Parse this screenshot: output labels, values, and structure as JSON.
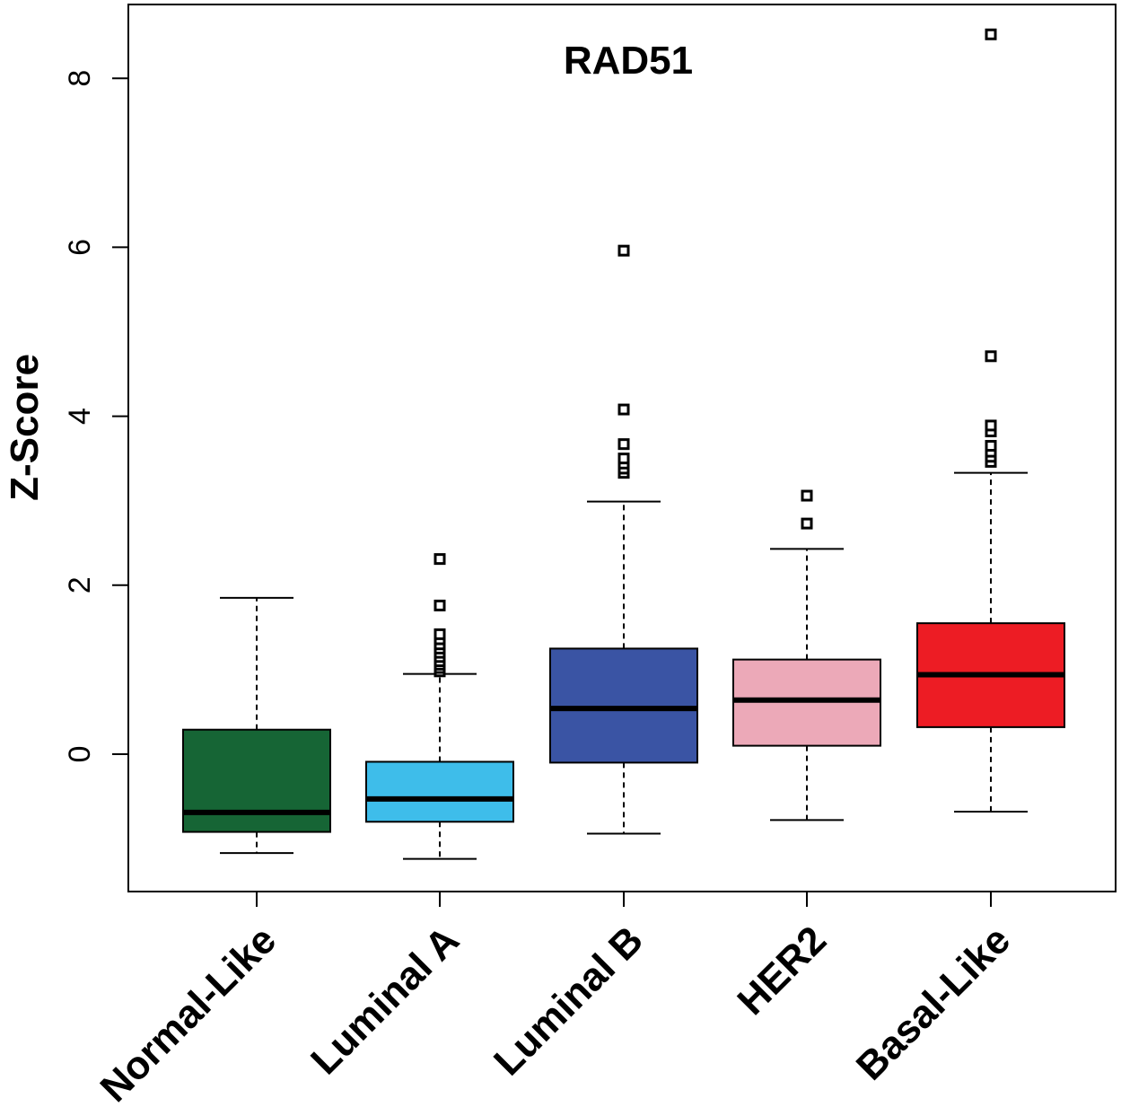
{
  "chart_data": {
    "type": "box",
    "title": "RAD51",
    "xlabel": "",
    "ylabel": "Z-Score",
    "ylim": [
      -1.62,
      8.9
    ],
    "yticks": [
      0,
      2,
      4,
      6,
      8
    ],
    "categories": [
      "Normal-Like",
      "Luminal A",
      "Luminal B",
      "HER2",
      "Basal-Like"
    ],
    "boxes": [
      {
        "category": "Normal-Like",
        "color": "#166535",
        "whisker_low": -1.17,
        "q1": -0.92,
        "median": -0.69,
        "q3": 0.29,
        "whisker_high": 1.85,
        "outliers": []
      },
      {
        "category": "Luminal A",
        "color": "#3EBDEA",
        "whisker_low": -1.24,
        "q1": -0.8,
        "median": -0.53,
        "q3": -0.09,
        "whisker_high": 0.95,
        "outliers": [
          0.98,
          1.02,
          1.06,
          1.1,
          1.15,
          1.2,
          1.25,
          1.3,
          1.36,
          1.42,
          1.76,
          2.31
        ]
      },
      {
        "category": "Luminal B",
        "color": "#3A54A4",
        "whisker_low": -0.94,
        "q1": -0.1,
        "median": 0.54,
        "q3": 1.25,
        "whisker_high": 2.99,
        "outliers": [
          3.33,
          3.38,
          3.44,
          3.5,
          3.67,
          4.08,
          5.96
        ]
      },
      {
        "category": "HER2",
        "color": "#ECA9B8",
        "whisker_low": -0.78,
        "q1": 0.1,
        "median": 0.64,
        "q3": 1.12,
        "whisker_high": 2.43,
        "outliers": [
          2.73,
          3.06
        ]
      },
      {
        "category": "Basal-Like",
        "color": "#ED1C24",
        "whisker_low": -0.68,
        "q1": 0.32,
        "median": 0.94,
        "q3": 1.55,
        "whisker_high": 3.33,
        "outliers": [
          3.46,
          3.52,
          3.58,
          3.65,
          3.82,
          3.89,
          4.71,
          8.52
        ]
      }
    ]
  }
}
